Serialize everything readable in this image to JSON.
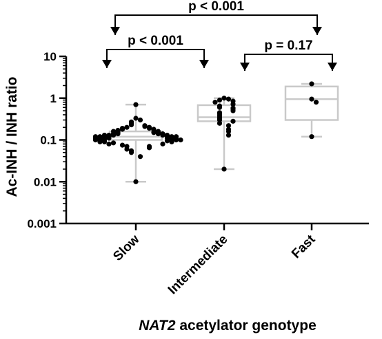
{
  "chart_data": {
    "type": "box",
    "xlabel_italic": "NAT2",
    "xlabel_rest": " acetylator genotype",
    "ylabel": "Ac-INH / INH ratio",
    "yscale": "log",
    "ylim": [
      0.001,
      10
    ],
    "yticks": [
      {
        "value": 0.001,
        "label": "0.001"
      },
      {
        "value": 0.01,
        "label": "0.01"
      },
      {
        "value": 0.1,
        "label": "0.1"
      },
      {
        "value": 1,
        "label": "1"
      },
      {
        "value": 10,
        "label": "10"
      }
    ],
    "categories": [
      "Slow",
      "Intermediate",
      "Fast"
    ],
    "groups": [
      {
        "name": "Slow",
        "min": 0.01,
        "q1": 0.1,
        "median": 0.12,
        "q3": 0.16,
        "max": 0.7,
        "points": [
          0.7,
          0.33,
          0.3,
          0.27,
          0.25,
          0.23,
          0.22,
          0.21,
          0.2,
          0.2,
          0.19,
          0.19,
          0.18,
          0.18,
          0.17,
          0.17,
          0.16,
          0.16,
          0.16,
          0.15,
          0.15,
          0.15,
          0.14,
          0.14,
          0.14,
          0.14,
          0.13,
          0.13,
          0.13,
          0.13,
          0.13,
          0.12,
          0.12,
          0.12,
          0.12,
          0.12,
          0.12,
          0.12,
          0.11,
          0.11,
          0.11,
          0.11,
          0.11,
          0.11,
          0.11,
          0.1,
          0.1,
          0.1,
          0.1,
          0.1,
          0.1,
          0.095,
          0.09,
          0.09,
          0.09,
          0.085,
          0.08,
          0.08,
          0.075,
          0.07,
          0.07,
          0.065,
          0.06,
          0.055,
          0.05,
          0.04,
          0.01
        ]
      },
      {
        "name": "Intermediate",
        "min": 0.02,
        "q1": 0.28,
        "median": 0.35,
        "q3": 0.68,
        "max": 1.0,
        "points": [
          1.0,
          0.95,
          0.9,
          0.85,
          0.8,
          0.72,
          0.65,
          0.6,
          0.58,
          0.55,
          0.5,
          0.45,
          0.42,
          0.38,
          0.35,
          0.32,
          0.3,
          0.28,
          0.25,
          0.22,
          0.18,
          0.16,
          0.13,
          0.02
        ]
      },
      {
        "name": "Fast",
        "min": 0.12,
        "q1": 0.3,
        "median": 0.95,
        "q3": 1.9,
        "max": 2.2,
        "points": [
          2.2,
          0.95,
          0.8,
          0.12
        ]
      }
    ],
    "comparisons": [
      {
        "label": "p < 0.001",
        "from": 0,
        "to": 1
      },
      {
        "label": "p = 0.17",
        "from": 1,
        "to": 2
      },
      {
        "label": "p < 0.001",
        "from": 0,
        "to": 2
      }
    ]
  }
}
